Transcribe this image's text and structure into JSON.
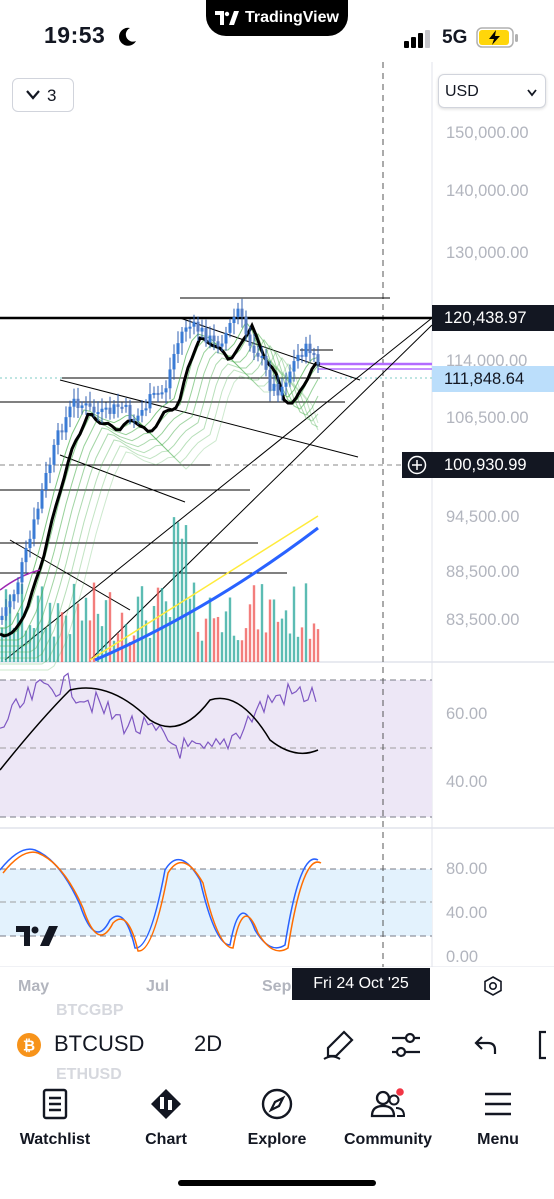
{
  "status_bar": {
    "time": "19:53",
    "network": "5G"
  },
  "dynamic_island": {
    "label": "TradingView"
  },
  "chart_header": {
    "layout_count": "3",
    "currency": "USD"
  },
  "price_axis": {
    "labels": [
      "150,000.00",
      "140,000.00",
      "130,000.00",
      "114,000.00",
      "106,500.00",
      "94,500.00",
      "88,500.00",
      "83,500.00"
    ],
    "boxes": [
      {
        "value": "120,438.97",
        "color": "#131722"
      },
      {
        "value": "111,848.64",
        "color": "#bbdefb",
        "text_color": "#131722"
      },
      {
        "value": "100,930.99",
        "color": "#131722"
      }
    ]
  },
  "rsi_axis": {
    "labels": [
      "60.00",
      "40.00"
    ]
  },
  "stoch_axis": {
    "labels": [
      "80.00",
      "40.00",
      "0.00"
    ]
  },
  "time_axis": {
    "labels": [
      "May",
      "Jul",
      "Sep"
    ],
    "crosshair_date": "Fri 24 Oct '25"
  },
  "toolbar": {
    "symbol": "BTCUSD",
    "interval": "2D",
    "bg_symbol_top": "BTCGBP",
    "bg_symbol_bottom": "ETHUSD"
  },
  "bottom_nav": [
    {
      "label": "Watchlist",
      "icon": "watchlist-icon"
    },
    {
      "label": "Chart",
      "icon": "chart-icon"
    },
    {
      "label": "Explore",
      "icon": "compass-icon"
    },
    {
      "label": "Community",
      "icon": "community-icon"
    },
    {
      "label": "Menu",
      "icon": "menu-icon"
    }
  ],
  "colors": {
    "up": "#26a69a",
    "down": "#ef5350",
    "rsi_band": "#ede7f6",
    "stoch_band": "#e3f2fd",
    "crosshair_box": "#131722"
  }
}
